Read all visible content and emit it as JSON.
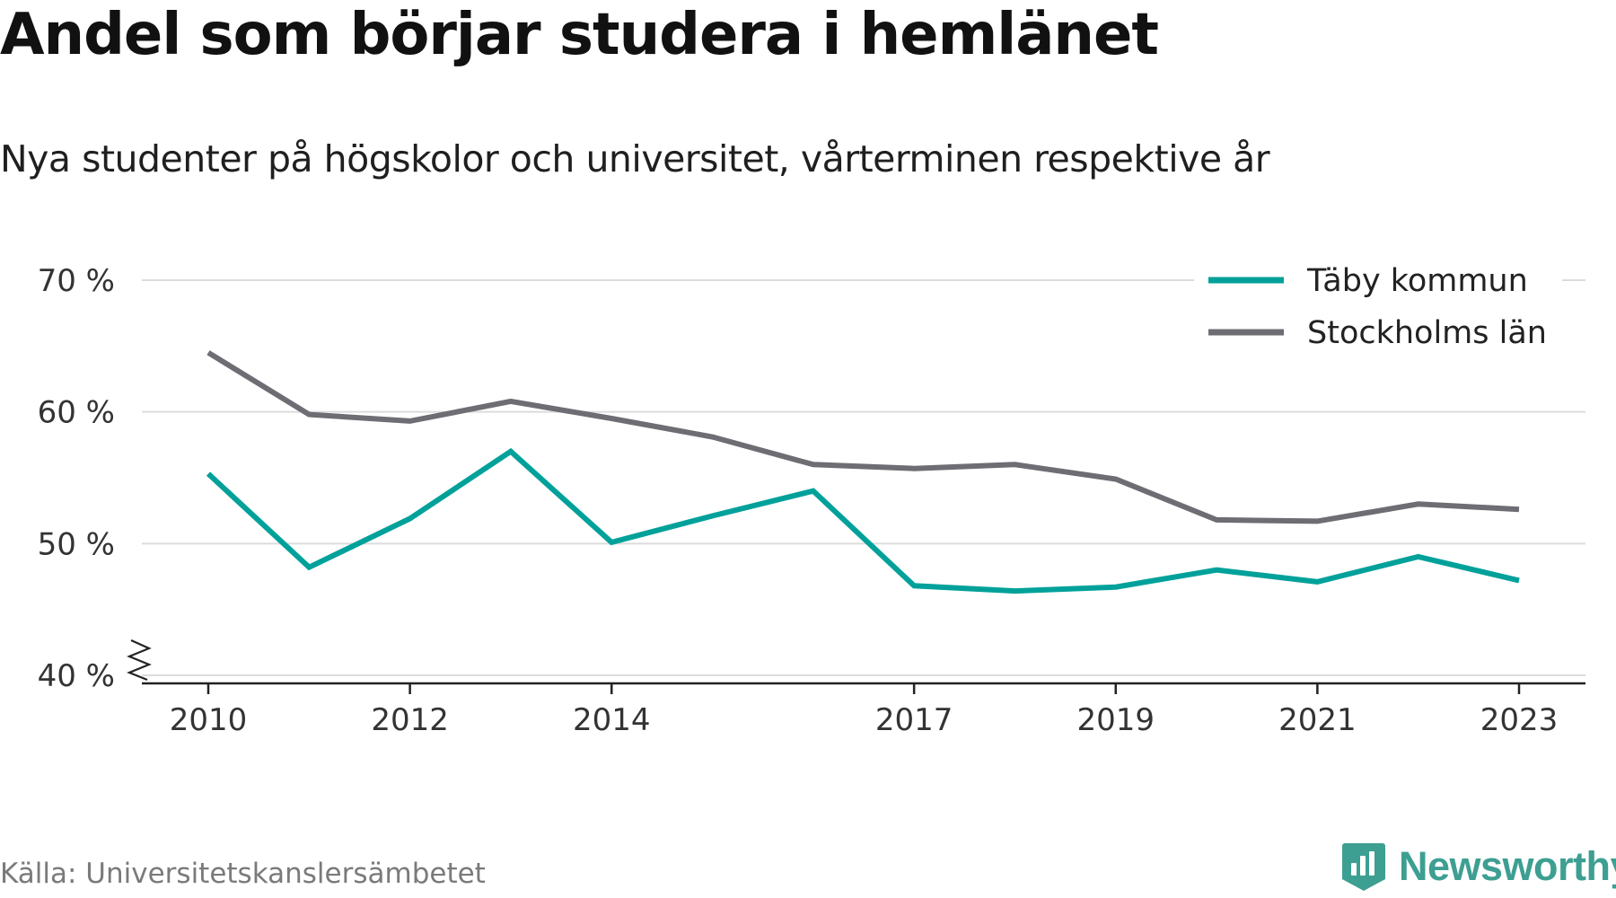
{
  "title": "Andel som börjar studera i hemlänet",
  "subtitle": "Nya studenter på högskolor och universitet, vårterminen respektive år",
  "source": "Källa: Universitetskanslersämbetet",
  "brand": {
    "name": "Newsworthy",
    "icon": "newsworthy-logo-icon",
    "color": "#3d9f91"
  },
  "chart_data": {
    "type": "line",
    "x": [
      2010,
      2011,
      2012,
      2013,
      2014,
      2015,
      2016,
      2017,
      2018,
      2019,
      2020,
      2021,
      2022,
      2023
    ],
    "x_ticks": [
      "2010",
      "2012",
      "2014",
      "2017",
      "2019",
      "2021",
      "2023"
    ],
    "y_ticks": [
      "40 %",
      "50 %",
      "60 %",
      "70 %"
    ],
    "ylim": [
      40,
      70
    ],
    "grid": true,
    "axis_break": true,
    "legend_position": "top-right",
    "series": [
      {
        "name": "Täby kommun",
        "color": "#00a19a",
        "values": [
          55.3,
          48.2,
          51.9,
          57.0,
          50.1,
          52.1,
          54.0,
          46.8,
          46.4,
          46.7,
          48.0,
          47.1,
          49.0,
          47.2
        ]
      },
      {
        "name": "Stockholms län",
        "color": "#6d6d73",
        "values": [
          64.5,
          59.8,
          59.3,
          60.8,
          59.5,
          58.1,
          56.0,
          55.7,
          56.0,
          54.9,
          51.8,
          51.7,
          53.0,
          52.6
        ]
      }
    ]
  }
}
